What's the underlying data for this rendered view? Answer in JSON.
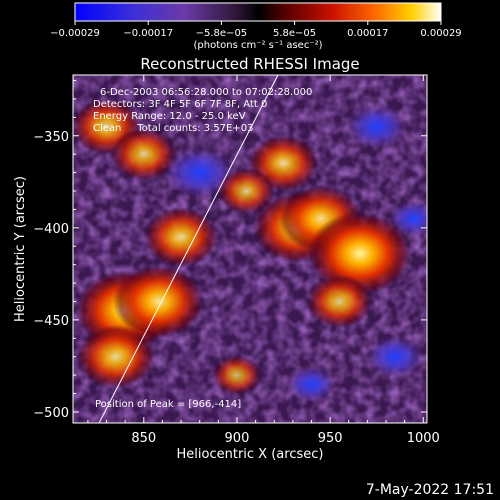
{
  "chart_data": {
    "type": "heatmap",
    "title": "Reconstructed RHESSI Image",
    "xlabel": "Heliocentric X (arcsec)",
    "ylabel": "Heliocentric Y (arcsec)",
    "xlim": [
      812,
      1002
    ],
    "ylim": [
      -506,
      -317
    ],
    "x_ticks": [
      850,
      900,
      950,
      1000
    ],
    "x_tick_labels": [
      "850",
      "900",
      "950",
      "1000"
    ],
    "y_ticks": [
      -350,
      -400,
      -450,
      -500
    ],
    "y_tick_labels": [
      "-350",
      "-400",
      "-450",
      "-500"
    ],
    "colorbar": {
      "range": [
        -0.00029,
        0.00029
      ],
      "tick_labels": [
        "-0.00029",
        "-0.00017",
        "-5.8e-05",
        "5.8e-05",
        "0.00017",
        "0.00029"
      ],
      "unit_label": "(photons cm⁻² s⁻¹ asec⁻²)"
    },
    "annotations": {
      "time_range": "6-Dec-2003 06:56:28.000 to 07:02:28.000",
      "detectors": "Detectors: 3F 4F 5F 6F 7F 8F, Att 0",
      "energy": "Energy Range: 12.0 - 25.0 keV",
      "clean": "Clean     Total counts: 3.57E+03",
      "peak": "Position of Peak = [966,-414]"
    },
    "limb_line": [
      [
        826,
        -506
      ],
      [
        922,
        -317
      ]
    ],
    "grid": false,
    "bright_regions": [
      {
        "x": 840,
        "y": -445,
        "level": 0.95
      },
      {
        "x": 858,
        "y": -440,
        "level": 0.85
      },
      {
        "x": 835,
        "y": -470,
        "level": 0.7
      },
      {
        "x": 870,
        "y": -405,
        "level": 0.65
      },
      {
        "x": 830,
        "y": -345,
        "level": 0.6
      },
      {
        "x": 850,
        "y": -360,
        "level": 0.55
      },
      {
        "x": 925,
        "y": -365,
        "level": 0.6
      },
      {
        "x": 932,
        "y": -400,
        "level": 0.8
      },
      {
        "x": 945,
        "y": -395,
        "level": 0.75
      },
      {
        "x": 966,
        "y": -414,
        "level": 1.0
      },
      {
        "x": 955,
        "y": -440,
        "level": 0.55
      },
      {
        "x": 905,
        "y": -380,
        "level": 0.45
      },
      {
        "x": 900,
        "y": -480,
        "level": 0.35
      }
    ],
    "dark_regions": [
      {
        "x": 880,
        "y": -370,
        "level": 1.0
      },
      {
        "x": 975,
        "y": -345,
        "level": 0.8
      },
      {
        "x": 985,
        "y": -470,
        "level": 0.75
      },
      {
        "x": 940,
        "y": -485,
        "level": 0.6
      },
      {
        "x": 995,
        "y": -395,
        "level": 0.6
      }
    ]
  },
  "footer": {
    "datetime": "7-May-2022 17:51"
  }
}
